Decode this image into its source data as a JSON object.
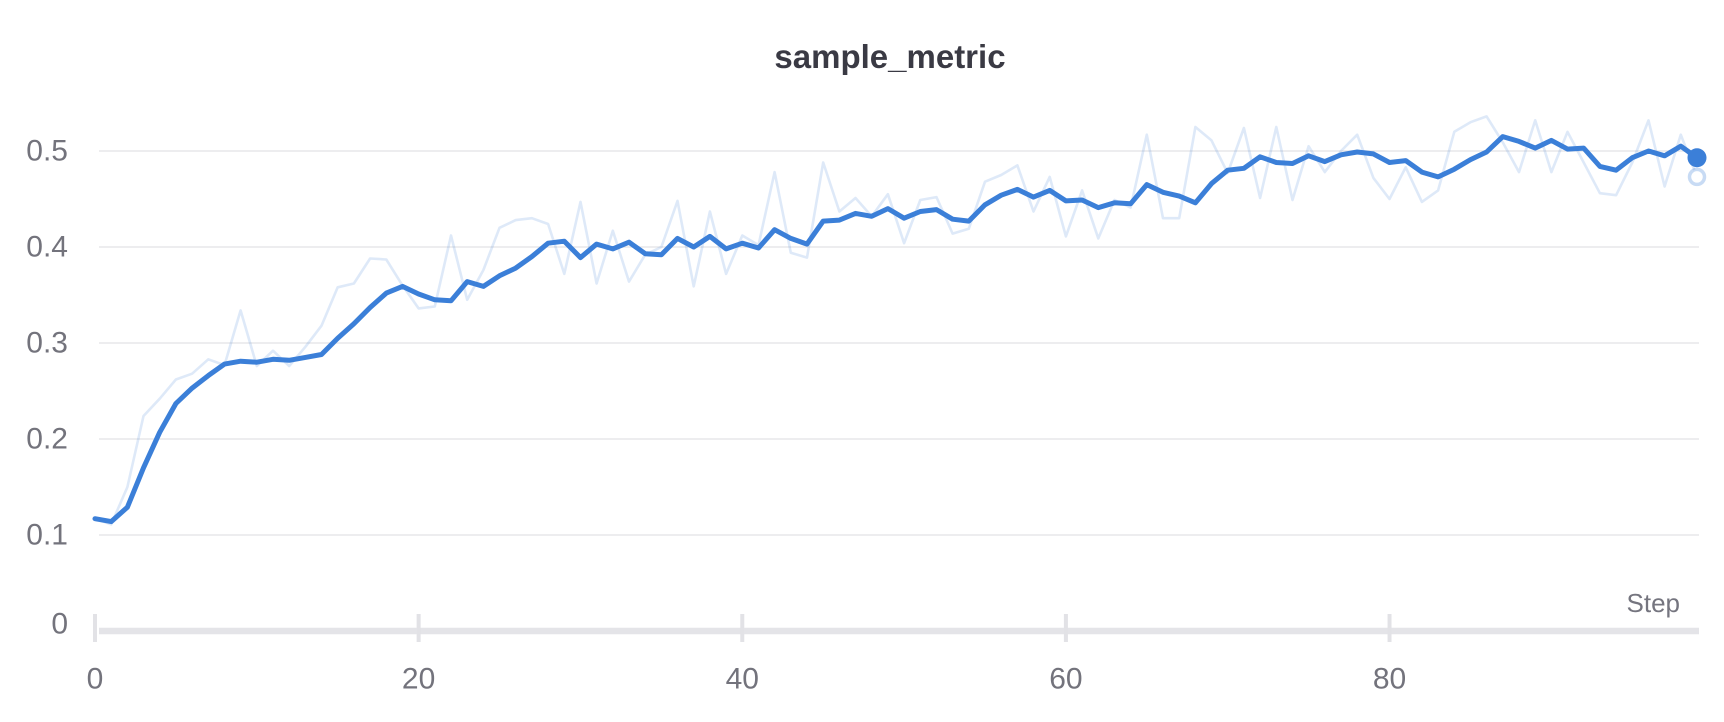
{
  "title": "sample_metric",
  "colors": {
    "accent_line": "#3b7fd8",
    "raw_line": "#3b7fd8",
    "raw_line_opacity": 0.17,
    "gridline": "#e7e7ea",
    "zero_axis_bar": "#e4e4e8",
    "tick_mark": "#e2e2e6",
    "title_text": "#3a3a44",
    "axis_text": "#73737c",
    "background": "#ffffff"
  },
  "axes": {
    "x": {
      "label": "Step",
      "ticks": [
        "0",
        "20",
        "40",
        "60",
        "80"
      ],
      "tick_values": [
        0,
        20,
        40,
        60,
        80
      ]
    },
    "y": {
      "ticks": [
        "0",
        "0.1",
        "0.2",
        "0.3",
        "0.4",
        "0.5"
      ],
      "tick_values": [
        0,
        0.1,
        0.2,
        0.3,
        0.4,
        0.5
      ]
    }
  },
  "chart_data": {
    "type": "line",
    "title": "sample_metric",
    "xlabel": "Step",
    "ylabel": "",
    "x_start": 0,
    "x_end": 99,
    "x_step": 1,
    "xlim": [
      0,
      99
    ],
    "ylim": [
      0,
      0.55
    ],
    "grid": true,
    "legend": "none",
    "series": [
      {
        "name": "raw",
        "style": "faint",
        "values": [
          0.117,
          0.111,
          0.15,
          0.224,
          0.242,
          0.262,
          0.268,
          0.283,
          0.277,
          0.334,
          0.276,
          0.292,
          0.276,
          0.296,
          0.318,
          0.358,
          0.362,
          0.388,
          0.387,
          0.36,
          0.336,
          0.338,
          0.412,
          0.345,
          0.376,
          0.42,
          0.428,
          0.43,
          0.424,
          0.372,
          0.447,
          0.362,
          0.417,
          0.364,
          0.392,
          0.4,
          0.448,
          0.359,
          0.437,
          0.372,
          0.412,
          0.402,
          0.478,
          0.394,
          0.389,
          0.488,
          0.437,
          0.451,
          0.432,
          0.455,
          0.404,
          0.449,
          0.452,
          0.414,
          0.419,
          0.468,
          0.475,
          0.485,
          0.437,
          0.473,
          0.411,
          0.459,
          0.409,
          0.449,
          0.441,
          0.517,
          0.43,
          0.43,
          0.525,
          0.511,
          0.477,
          0.524,
          0.451,
          0.525,
          0.449,
          0.505,
          0.478,
          0.5,
          0.517,
          0.472,
          0.45,
          0.483,
          0.447,
          0.459,
          0.52,
          0.53,
          0.536,
          0.509,
          0.478,
          0.532,
          0.478,
          0.52,
          0.488,
          0.456,
          0.454,
          0.488,
          0.532,
          0.463,
          0.517,
          0.473
        ]
      },
      {
        "name": "smoothed",
        "style": "bold",
        "values": [
          0.117,
          0.114,
          0.129,
          0.17,
          0.207,
          0.237,
          0.253,
          0.266,
          0.278,
          0.281,
          0.28,
          0.283,
          0.282,
          0.285,
          0.288,
          0.305,
          0.32,
          0.337,
          0.352,
          0.359,
          0.351,
          0.345,
          0.344,
          0.364,
          0.359,
          0.37,
          0.378,
          0.39,
          0.404,
          0.406,
          0.389,
          0.403,
          0.398,
          0.405,
          0.393,
          0.392,
          0.409,
          0.4,
          0.411,
          0.398,
          0.404,
          0.399,
          0.418,
          0.409,
          0.403,
          0.427,
          0.428,
          0.435,
          0.432,
          0.44,
          0.43,
          0.437,
          0.439,
          0.429,
          0.427,
          0.444,
          0.454,
          0.46,
          0.452,
          0.459,
          0.448,
          0.449,
          0.441,
          0.446,
          0.445,
          0.465,
          0.457,
          0.453,
          0.446,
          0.466,
          0.48,
          0.482,
          0.494,
          0.488,
          0.487,
          0.495,
          0.489,
          0.496,
          0.499,
          0.497,
          0.488,
          0.49,
          0.478,
          0.473,
          0.481,
          0.491,
          0.499,
          0.515,
          0.51,
          0.503,
          0.511,
          0.502,
          0.503,
          0.484,
          0.48,
          0.493,
          0.5,
          0.495,
          0.505,
          0.493
        ]
      }
    ],
    "end_markers": {
      "smoothed_last_value": 0.493,
      "raw_last_value": 0.473
    }
  }
}
